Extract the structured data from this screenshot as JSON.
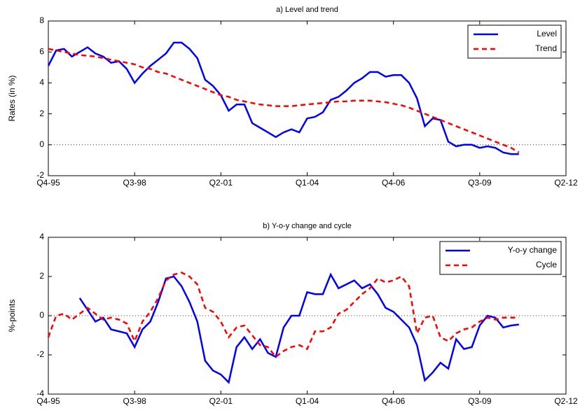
{
  "chart_data": [
    {
      "type": "line",
      "title": "a) Level and trend",
      "y_label": "Rates (in %)",
      "x": [
        "Q4-95",
        "Q1-96",
        "Q2-96",
        "Q3-96",
        "Q4-96",
        "Q1-97",
        "Q2-97",
        "Q3-97",
        "Q4-97",
        "Q1-98",
        "Q2-98",
        "Q3-98",
        "Q4-98",
        "Q1-99",
        "Q2-99",
        "Q3-99",
        "Q4-99",
        "Q1-00",
        "Q2-00",
        "Q3-00",
        "Q4-00",
        "Q1-01",
        "Q2-01",
        "Q3-01",
        "Q4-01",
        "Q1-02",
        "Q2-02",
        "Q3-02",
        "Q4-02",
        "Q1-03",
        "Q2-03",
        "Q3-03",
        "Q4-03",
        "Q1-04",
        "Q2-04",
        "Q3-04",
        "Q4-04",
        "Q1-05",
        "Q2-05",
        "Q3-05",
        "Q4-05",
        "Q1-06",
        "Q2-06",
        "Q3-06",
        "Q4-06",
        "Q1-07",
        "Q2-07",
        "Q3-07",
        "Q4-07",
        "Q1-08",
        "Q2-08",
        "Q3-08",
        "Q4-08",
        "Q1-09",
        "Q2-09",
        "Q3-09",
        "Q4-09",
        "Q1-10",
        "Q2-10",
        "Q3-10",
        "Q4-10"
      ],
      "series": [
        {
          "name": "Level",
          "color": "#0000ff",
          "style": "solid",
          "values": [
            5.1,
            6.1,
            6.2,
            5.7,
            6.0,
            6.3,
            5.9,
            5.7,
            5.3,
            5.4,
            4.9,
            4.0,
            4.6,
            5.1,
            5.5,
            5.9,
            6.6,
            6.6,
            6.2,
            5.6,
            4.2,
            3.8,
            3.2,
            2.2,
            2.6,
            2.6,
            1.4,
            1.1,
            0.8,
            0.5,
            0.8,
            1.0,
            0.8,
            1.7,
            1.8,
            2.1,
            2.9,
            3.1,
            3.5,
            4.0,
            4.3,
            4.7,
            4.7,
            4.4,
            4.5,
            4.5,
            4.0,
            3.0,
            1.2,
            1.7,
            1.6,
            0.2,
            -0.1,
            0.0,
            0.0,
            -0.2,
            -0.1,
            -0.2,
            -0.5,
            -0.6,
            -0.6
          ]
        },
        {
          "name": "Trend",
          "color": "#ff0000",
          "style": "dashed",
          "values": [
            6.2,
            6.1,
            6.0,
            5.9,
            5.8,
            5.75,
            5.7,
            5.6,
            5.5,
            5.4,
            5.3,
            5.2,
            5.0,
            4.9,
            4.7,
            4.6,
            4.4,
            4.2,
            4.0,
            3.8,
            3.6,
            3.4,
            3.2,
            3.1,
            2.9,
            2.8,
            2.7,
            2.6,
            2.55,
            2.5,
            2.5,
            2.5,
            2.55,
            2.6,
            2.65,
            2.7,
            2.75,
            2.8,
            2.8,
            2.85,
            2.85,
            2.85,
            2.8,
            2.75,
            2.65,
            2.55,
            2.4,
            2.2,
            2.0,
            1.8,
            1.6,
            1.4,
            1.2,
            1.0,
            0.8,
            0.6,
            0.4,
            0.2,
            0.0,
            -0.2,
            -0.5
          ]
        }
      ],
      "xlim": [
        "Q4-95",
        "Q2-12"
      ],
      "xticks": [
        "Q4-95",
        "Q3-98",
        "Q2-01",
        "Q1-04",
        "Q4-06",
        "Q3-09",
        "Q2-12"
      ],
      "ylim": [
        -2,
        8
      ],
      "yticks": [
        -2,
        0,
        2,
        4,
        6,
        8
      ],
      "grid": false,
      "zero_line": true,
      "legend": "upper right"
    },
    {
      "type": "line",
      "title": "b) Y-o-y change and cycle",
      "y_label": "%-points",
      "x": [
        "Q4-95",
        "Q1-96",
        "Q2-96",
        "Q3-96",
        "Q4-96",
        "Q1-97",
        "Q2-97",
        "Q3-97",
        "Q4-97",
        "Q1-98",
        "Q2-98",
        "Q3-98",
        "Q4-98",
        "Q1-99",
        "Q2-99",
        "Q3-99",
        "Q4-99",
        "Q1-00",
        "Q2-00",
        "Q3-00",
        "Q4-00",
        "Q1-01",
        "Q2-01",
        "Q3-01",
        "Q4-01",
        "Q1-02",
        "Q2-02",
        "Q3-02",
        "Q4-02",
        "Q1-03",
        "Q2-03",
        "Q3-03",
        "Q4-03",
        "Q1-04",
        "Q2-04",
        "Q3-04",
        "Q4-04",
        "Q1-05",
        "Q2-05",
        "Q3-05",
        "Q4-05",
        "Q1-06",
        "Q2-06",
        "Q3-06",
        "Q4-06",
        "Q1-07",
        "Q2-07",
        "Q3-07",
        "Q4-07",
        "Q1-08",
        "Q2-08",
        "Q3-08",
        "Q4-08",
        "Q1-09",
        "Q2-09",
        "Q3-09",
        "Q4-09",
        "Q1-10",
        "Q2-10",
        "Q3-10",
        "Q4-10"
      ],
      "series": [
        {
          "name": "Y-o-y change",
          "color": "#0000ff",
          "style": "solid",
          "values": [
            null,
            null,
            null,
            null,
            0.9,
            0.3,
            -0.3,
            -0.1,
            -0.7,
            -0.8,
            -0.9,
            -1.6,
            -0.7,
            -0.3,
            0.7,
            1.9,
            2.0,
            1.5,
            0.7,
            -0.3,
            -2.3,
            -2.8,
            -3.0,
            -3.4,
            -1.6,
            -1.1,
            -1.7,
            -1.2,
            -1.9,
            -2.1,
            -0.6,
            0.0,
            0.0,
            1.2,
            1.1,
            1.1,
            2.1,
            1.4,
            1.6,
            1.8,
            1.4,
            1.6,
            1.1,
            0.4,
            0.2,
            -0.2,
            -0.6,
            -1.5,
            -3.3,
            -2.9,
            -2.4,
            -2.7,
            -1.2,
            -1.7,
            -1.6,
            -0.5,
            0.0,
            -0.1,
            -0.6,
            -0.5,
            -0.45
          ]
        },
        {
          "name": "Cycle",
          "color": "#ff0000",
          "style": "dashed",
          "values": [
            -1.1,
            0.0,
            0.1,
            -0.2,
            0.1,
            0.4,
            0.1,
            -0.2,
            -0.1,
            -0.2,
            -0.4,
            -1.3,
            -0.3,
            0.2,
            0.9,
            1.8,
            2.1,
            2.2,
            2.0,
            1.6,
            0.4,
            0.2,
            -0.3,
            -1.1,
            -0.6,
            -0.5,
            -1.0,
            -1.5,
            -1.6,
            -2.1,
            -1.8,
            -1.6,
            -1.5,
            -1.7,
            -0.8,
            -0.8,
            -0.6,
            0.1,
            0.3,
            0.7,
            1.1,
            1.4,
            1.9,
            1.7,
            1.8,
            2.0,
            1.5,
            -0.9,
            -0.1,
            0.0,
            -1.1,
            -1.3,
            -0.9,
            -0.7,
            -0.6,
            -0.3,
            -0.1,
            -0.2,
            -0.1,
            -0.1,
            -0.1
          ]
        }
      ],
      "xlim": [
        "Q4-95",
        "Q2-12"
      ],
      "xticks": [
        "Q4-95",
        "Q3-98",
        "Q2-01",
        "Q1-04",
        "Q4-06",
        "Q3-09",
        "Q2-12"
      ],
      "ylim": [
        -4,
        4
      ],
      "yticks": [
        -4,
        -2,
        0,
        2,
        4
      ],
      "grid": false,
      "zero_line": true,
      "legend": "upper right"
    }
  ]
}
